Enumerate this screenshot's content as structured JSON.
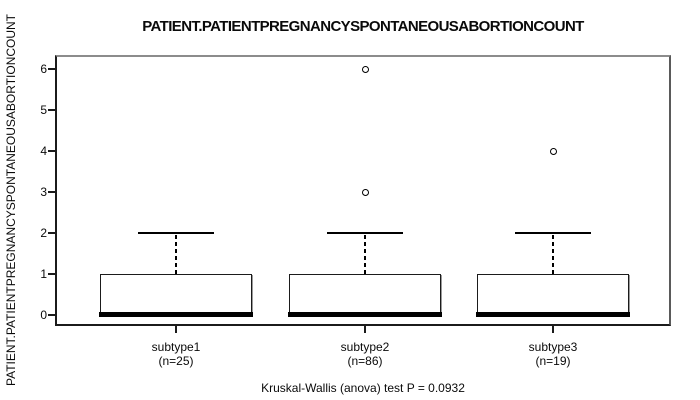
{
  "title": "PATIENT.PATIENTPREGNANCYSPONTANEOUSABORTIONCOUNT",
  "y_axis": {
    "label": "PATIENT.PATIENTPREGNANCYSPONTANEOUSABORTIONCOUNT",
    "ticks": [
      0,
      1,
      2,
      3,
      4,
      5,
      6
    ]
  },
  "footer": {
    "stat_test": "Kruskal-Wallis (anova) test P = 0.0932"
  },
  "colors": {
    "background": "#ffffff",
    "foreground": "#000000",
    "box_fill": "#ffffff",
    "frame_gray": "#8c8c8c"
  },
  "chart_data": {
    "type": "boxplot",
    "title": "PATIENT.PATIENTPREGNANCYSPONTANEOUSABORTIONCOUNT",
    "xlabel": "",
    "ylabel": "PATIENT.PATIENTPREGNANCYSPONTANEOUSABORTIONCOUNT",
    "ylim": [
      0,
      6
    ],
    "yticks": [
      0,
      1,
      2,
      3,
      4,
      5,
      6
    ],
    "grid": false,
    "legend": false,
    "categories": [
      "subtype1",
      "subtype2",
      "subtype3"
    ],
    "groups": [
      {
        "label": "subtype1",
        "n_label": "(n=25)",
        "n": 25,
        "q1": 0,
        "median": 0,
        "q3": 1,
        "whisker_low": 0,
        "whisker_high": 2,
        "outliers": []
      },
      {
        "label": "subtype2",
        "n_label": "(n=86)",
        "n": 86,
        "q1": 0,
        "median": 0,
        "q3": 1,
        "whisker_low": 0,
        "whisker_high": 2,
        "outliers": [
          3,
          6
        ]
      },
      {
        "label": "subtype3",
        "n_label": "(n=19)",
        "n": 19,
        "q1": 0,
        "median": 0,
        "q3": 1,
        "whisker_low": 0,
        "whisker_high": 2,
        "outliers": [
          4
        ]
      }
    ],
    "annotation": "Kruskal-Wallis (anova) test P = 0.0932"
  }
}
